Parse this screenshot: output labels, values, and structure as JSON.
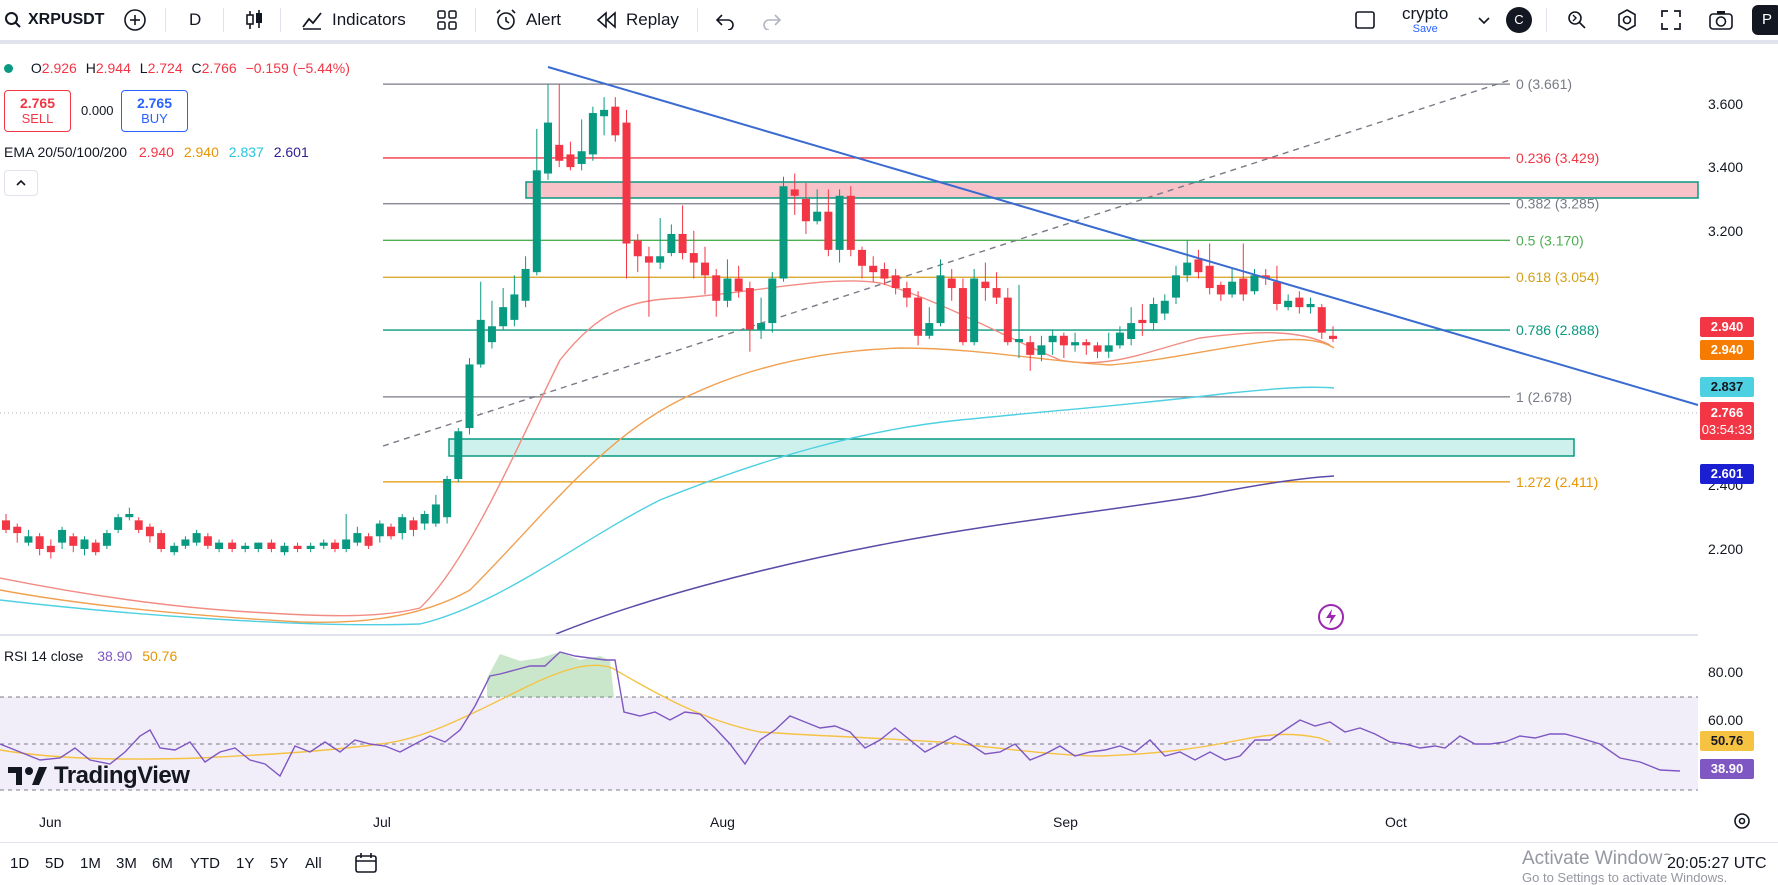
{
  "toolbar": {
    "symbol": "XRPUSDT",
    "interval": "D",
    "indicators_label": "Indicators",
    "alert_label": "Alert",
    "replay_label": "Replay",
    "layout_name": "crypto",
    "layout_status": "Save",
    "avatar_letter": "C",
    "publish_partial": "P"
  },
  "legend": {
    "ohlc": {
      "o_label": "O",
      "o": "2.926",
      "h_label": "H",
      "h": "2.944",
      "l_label": "L",
      "l": "2.724",
      "c_label": "C",
      "c": "2.766",
      "change": "−0.159 (−5.44%)"
    },
    "sell": {
      "price": "2.765",
      "label": "SELL"
    },
    "spread": "0.000",
    "buy": {
      "price": "2.765",
      "label": "BUY"
    },
    "ema": {
      "label": "EMA 20/50/100/200",
      "v20": "2.940",
      "v50": "2.940",
      "v100": "2.837",
      "v200": "2.601"
    },
    "rsi": {
      "label": "RSI 14 close",
      "rsi": "38.90",
      "ma": "50.76"
    }
  },
  "fib_levels": [
    {
      "label": "0 (3.661)",
      "price": 3.661,
      "color": "#787b86"
    },
    {
      "label": "0.236 (3.429)",
      "price": 3.429,
      "color": "#f23645"
    },
    {
      "label": "0.382 (3.285)",
      "price": 3.285,
      "color": "#787b86"
    },
    {
      "label": "0.5 (3.170)",
      "price": 3.17,
      "color": "#4caf50"
    },
    {
      "label": "0.618 (3.054)",
      "price": 3.054,
      "color": "#d4a017"
    },
    {
      "label": "0.786 (2.888)",
      "price": 2.888,
      "color": "#089981"
    },
    {
      "label": "1 (2.678)",
      "price": 2.678,
      "color": "#787b86"
    },
    {
      "label": "1.272 (2.411)",
      "price": 2.411,
      "color": "#e69500"
    }
  ],
  "price_axis": [
    "3.600",
    "3.400",
    "3.200",
    "2.400",
    "2.200"
  ],
  "price_tags": {
    "ema20": "2.940",
    "ema50": "2.940",
    "ema100": "2.837",
    "last": "2.766",
    "countdown": "03:54:33",
    "ema200": "2.601"
  },
  "rsi_axis": [
    "80.00",
    "60.00"
  ],
  "rsi_tags": {
    "ma": "50.76",
    "rsi": "38.90"
  },
  "time_axis": [
    "Jun",
    "Jul",
    "Aug",
    "Sep",
    "Oct"
  ],
  "ranges": [
    "1D",
    "5D",
    "1M",
    "3M",
    "6M",
    "YTD",
    "1Y",
    "5Y",
    "All"
  ],
  "clock": "20:05:27 UTC",
  "watermark": {
    "line1": "Activate Windows",
    "line2": "Go to Settings to activate Windows."
  },
  "logo_text": "TradingView",
  "colors": {
    "up": "#089981",
    "down": "#f23645",
    "ema20": "#f23645",
    "ema50": "#f0a050",
    "ema100": "#4dd0e1",
    "ema200": "#5b4aa8",
    "trendline": "#3a6bd1",
    "rsi": "#7e57c2",
    "rsi_ma": "#f5c242"
  }
}
